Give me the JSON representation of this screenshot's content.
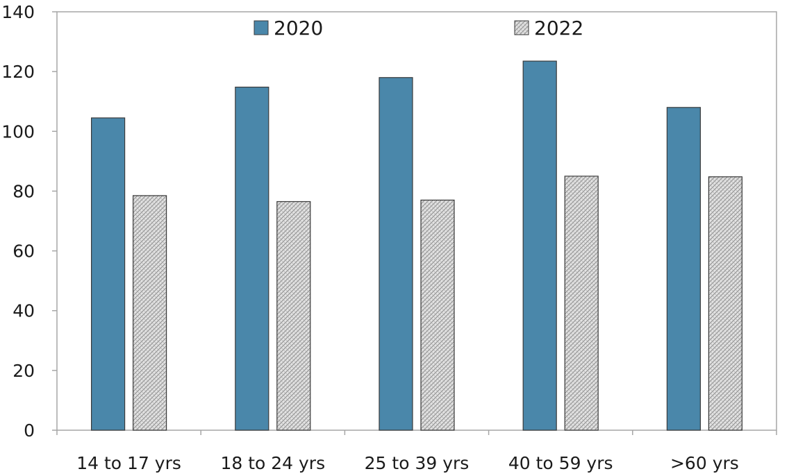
{
  "chart_data": {
    "type": "bar",
    "categories": [
      "14 to 17 yrs",
      "18 to 24 yrs",
      "25 to 39 yrs",
      "40 to 59 yrs",
      ">60 yrs"
    ],
    "series": [
      {
        "name": "2020",
        "values": [
          104.5,
          114.8,
          118.0,
          123.5,
          108.0
        ]
      },
      {
        "name": "2022",
        "values": [
          78.5,
          76.5,
          77.0,
          85.0,
          84.8
        ]
      }
    ],
    "title": "",
    "xlabel": "",
    "ylabel": "",
    "ylim": [
      0,
      140
    ],
    "yticks": [
      "0",
      "20",
      "40",
      "60",
      "80",
      "100",
      "120",
      "140"
    ],
    "grid": false,
    "legend_position": "top",
    "colors": {
      "2020": "#4a87aa",
      "2022": "#d4d4d4",
      "bar_edge": "#3a3a3a",
      "axis": "#a6a6a6"
    }
  }
}
